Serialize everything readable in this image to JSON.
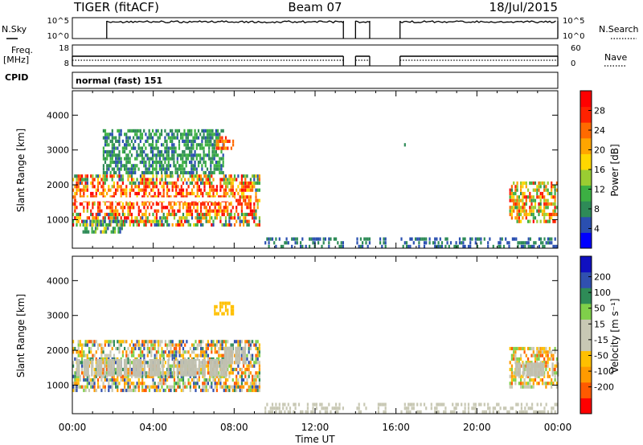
{
  "header": {
    "radar": "TIGER (fitACF)",
    "beam": "Beam 07",
    "date": "18/Jul/2015"
  },
  "housekeeping": {
    "nsky_label": "N.Sky",
    "nsky_ticks": [
      "10^5",
      "10^0"
    ],
    "nsearch_label": "N.Search",
    "nsearch_ticks": [
      "10^5",
      "10^0"
    ],
    "freq_label_1": "Freq.",
    "freq_label_2": "[MHz]",
    "freq_ticks": [
      "18",
      "8"
    ],
    "nave_label": "Nave",
    "nave_ticks": [
      "60",
      "0"
    ],
    "cpid_label": "CPID",
    "cpid_text": "normal (fast) 151"
  },
  "colors": {
    "power": [
      "#0000ff",
      "#2a4fb0",
      "#2e8b57",
      "#3cb043",
      "#9acd32",
      "#ffd700",
      "#ffa500",
      "#ff6a00",
      "#ff2200",
      "#ff0000"
    ],
    "velocity": [
      "#ff0000",
      "#ff5a00",
      "#ff9a00",
      "#ffc000",
      "#c8c8b4",
      "#c8c8b4",
      "#7fd04a",
      "#2e8b57",
      "#3050b0",
      "#1010c0"
    ],
    "ground": "#c0c0b0"
  },
  "chart_data": [
    {
      "type": "heatmap",
      "title": "",
      "xlabel": "",
      "ylabel": "Slant Range [km]",
      "x_ticks": [
        "00:00",
        "04:00",
        "08:00",
        "12:00",
        "16:00",
        "20:00",
        "00:00"
      ],
      "y_ticks": [
        "1000",
        "2000",
        "3000",
        "4000"
      ],
      "ylim": [
        180,
        4700
      ],
      "xlim_hours": [
        0,
        24
      ],
      "colorbar_label": "Power [dB]",
      "colorbar_ticks": [
        "4",
        "8",
        "12",
        "16",
        "20",
        "24",
        "28"
      ],
      "colorbar_range": [
        0,
        30
      ],
      "data_gaps_hours": [
        [
          13.4,
          14.0
        ],
        [
          14.7,
          15.0
        ],
        [
          15.5,
          16.2
        ]
      ],
      "echo_regions": [
        {
          "t": [
            0.0,
            9.3
          ],
          "range_km": [
            800,
            2300
          ],
          "value_db": [
            4,
            30
          ]
        },
        {
          "t": [
            1.5,
            7.5
          ],
          "range_km": [
            2300,
            3600
          ],
          "value_db": [
            4,
            12
          ]
        },
        {
          "t": [
            7.0,
            8.0
          ],
          "range_km": [
            3000,
            3400
          ],
          "value_db": [
            20,
            26
          ]
        },
        {
          "t": [
            0.5,
            2.5
          ],
          "range_km": [
            600,
            1000
          ],
          "value_db": [
            4,
            16
          ]
        },
        {
          "t": [
            21.6,
            24.0
          ],
          "range_km": [
            900,
            2100
          ],
          "value_db": [
            8,
            28
          ]
        },
        {
          "t": [
            16.4,
            16.9
          ],
          "range_km": [
            3000,
            3200
          ],
          "value_db": [
            4,
            10
          ]
        },
        {
          "t": [
            9.5,
            24.0
          ],
          "range_km": [
            180,
            500
          ],
          "value_db": [
            4,
            8
          ]
        }
      ]
    },
    {
      "type": "heatmap",
      "title": "",
      "xlabel": "Time UT",
      "ylabel": "Slant Range [km]",
      "x_ticks": [
        "00:00",
        "04:00",
        "08:00",
        "12:00",
        "16:00",
        "20:00",
        "00:00"
      ],
      "y_ticks": [
        "1000",
        "2000",
        "3000",
        "4000"
      ],
      "ylim": [
        180,
        4700
      ],
      "xlim_hours": [
        0,
        24
      ],
      "colorbar_label": "Velocity [m s⁻¹]",
      "colorbar_ticks": [
        "200",
        "100",
        "50",
        "15",
        "-15",
        "-50",
        "-100",
        "-200"
      ],
      "colorbar_range": [
        -250,
        250
      ],
      "data_gaps_hours": [
        [
          13.4,
          14.0
        ],
        [
          14.7,
          15.0
        ],
        [
          15.5,
          16.2
        ]
      ],
      "echo_regions": [
        {
          "t": [
            0.0,
            9.3
          ],
          "range_km": [
            800,
            2300
          ],
          "value_ms": [
            -200,
            200
          ]
        },
        {
          "t": [
            7.0,
            8.0
          ],
          "range_km": [
            3000,
            3400
          ],
          "value_ms": [
            -100,
            -50
          ]
        },
        {
          "t": [
            21.6,
            24.0
          ],
          "range_km": [
            900,
            2100
          ],
          "value_ms": [
            -200,
            100
          ]
        },
        {
          "t": [
            9.5,
            24.0
          ],
          "range_km": [
            180,
            500
          ],
          "value_ms": [
            -50,
            50
          ]
        }
      ]
    }
  ]
}
